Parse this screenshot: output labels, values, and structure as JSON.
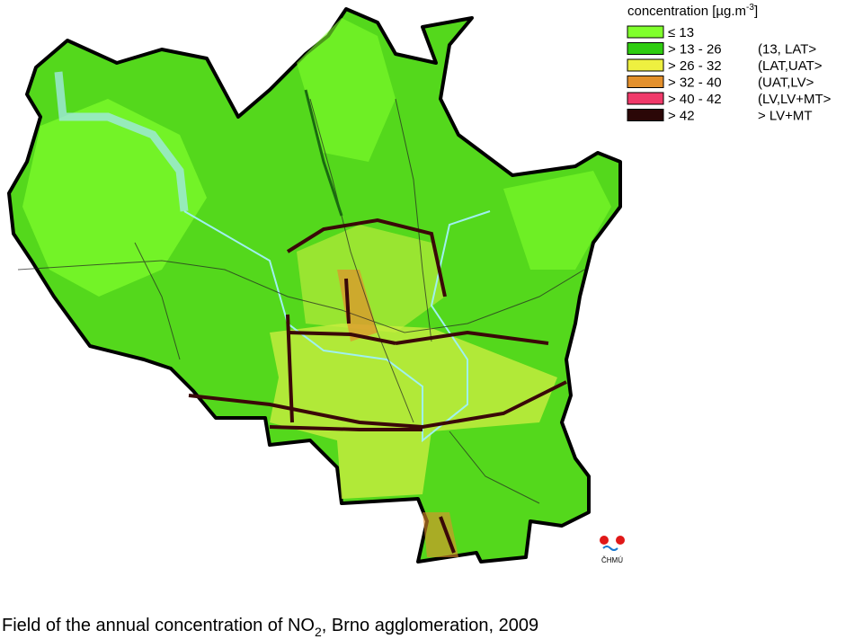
{
  "legend": {
    "title": [
      "concentration [µg.m",
      "-3",
      "]"
    ],
    "entries": [
      {
        "range": "≤ 13",
        "color": "#80ff2c"
      },
      {
        "range": "> 13 - 26",
        "class": "(13, LAT>",
        "color": "#2fcc10"
      },
      {
        "range": "> 26 - 32",
        "class": "(LAT,UAT>",
        "color": "#eef040"
      },
      {
        "range": "> 32 - 40",
        "class": "(UAT,LV>",
        "color": "#e3902c"
      },
      {
        "range": "> 40 - 42",
        "class": "(LV,LV+MT>",
        "color": "#f03a6a"
      },
      {
        "range": "> 42",
        "class": "> LV+MT",
        "color": "#2b0707"
      }
    ]
  },
  "logo": {
    "text": "ČHMÚ"
  },
  "caption": [
    "Field of the annual concentration of NO",
    "2",
    ", Brno agglomeration, 2009"
  ]
}
